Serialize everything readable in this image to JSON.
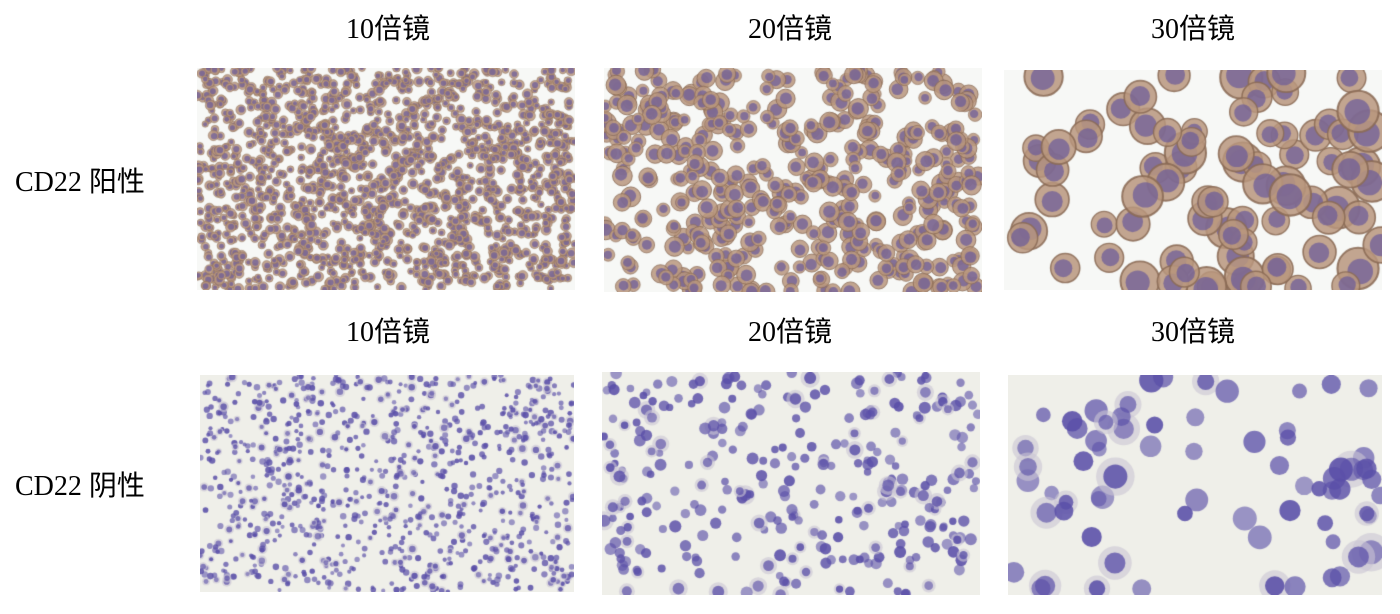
{
  "rows": [
    {
      "label": "CD22 阳性",
      "panels": [
        {
          "title": "10倍镜"
        },
        {
          "title": "20倍镜"
        },
        {
          "title": "30倍镜"
        }
      ]
    },
    {
      "label": "CD22 阴性",
      "panels": [
        {
          "title": "10倍镜"
        },
        {
          "title": "20倍镜"
        },
        {
          "title": "30倍镜"
        }
      ]
    }
  ],
  "colors": {
    "positive_cytoplasm": "#b9967e",
    "positive_nucleus": "#6a5a9a",
    "negative_nucleus": "#5a4fa8",
    "background_positive": "#f7f8f6",
    "background_negative": "#efefe9"
  }
}
